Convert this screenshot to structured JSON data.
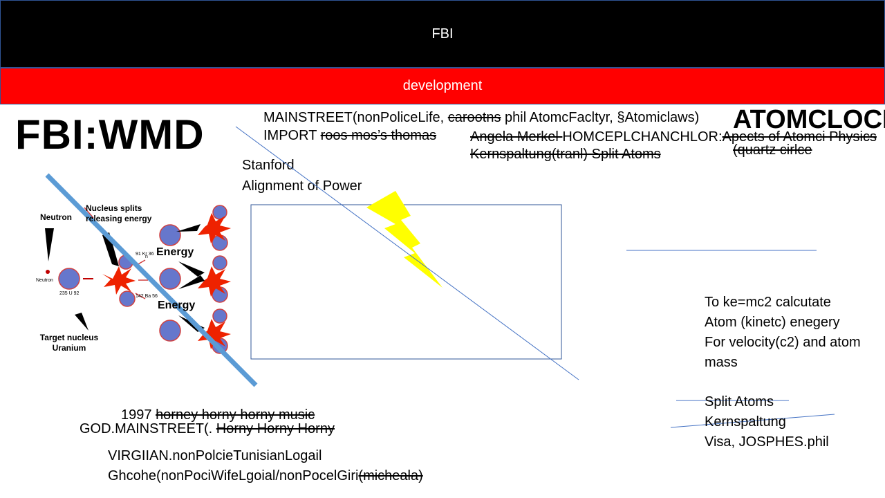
{
  "header": {
    "title": "FBI"
  },
  "subheader": {
    "title": "development"
  },
  "main_title": "FBI:WMD",
  "atomclock_title": "ATOMCLOCK",
  "top_lines": {
    "line1_prefix": "MAINSTREET(nonPoliceLife, ",
    "line1_strike": "carootns",
    "line1_suffix": " phil AtomcFacltyr, §Atomiclaws)",
    "line2_prefix": "IMPORT ",
    "line2_strike": "roos mos’s thomas"
  },
  "merkel_lines": {
    "line1_strike": "Angela Merkel ",
    "line1_rest": "HOMCEPLCHANCHLOR:",
    "line1_tail_strike": "Apects of Atomci Physics",
    "line2_strike": "Kernspaltung(tranl) Split Atoms",
    "line3_strike": "(quartz cirlce"
  },
  "stanford": {
    "line1": "Stanford",
    "line2": "Alignment of Power"
  },
  "diagram": {
    "neutron_top": "Neutron",
    "nucleus_splits": "Nucleus splits releasing energy",
    "neutron_small": "Neutron",
    "target": "Target nucleus Uranium",
    "energy1": "Energy",
    "energy2": "Energy",
    "iso_u": "235 U 92",
    "iso_kr": "91 Kr 36",
    "iso_ba": "142 Ba 56",
    "iso_n": "n"
  },
  "right_text": {
    "line1": "To ke=mc2 calcutate",
    "line2": "Atom (kinetc) enegery",
    "line3": "For velocity(c2) and atom",
    "line4": "mass",
    "line5": "Split Atoms",
    "line6": "Kernspaltung",
    "line7": "Visa, JOSPHES.phil"
  },
  "bottom_text": {
    "line1_prefix": "1997 ",
    "line1_strike": "horney horny horny music",
    "line2_prefix": "GOD.MAINSTREET(. ",
    "line2_strike": "Horny Horny Horny",
    "line3": "VIRGIIAN.nonPolcieTunisianLogail",
    "line4_prefix": "Ghcohe(nonPociWifeLgoial/nonPocelGiri",
    "line4_strike": "(micheala)"
  },
  "colors": {
    "black_banner": "#000000",
    "red_banner": "#ff0000",
    "line_blue": "#5b9bd5",
    "rect_border": "#2f5597",
    "bolt": "#ffff00"
  },
  "icons": [
    "lightning-bolt-icon",
    "fission-diagram-icon"
  ]
}
